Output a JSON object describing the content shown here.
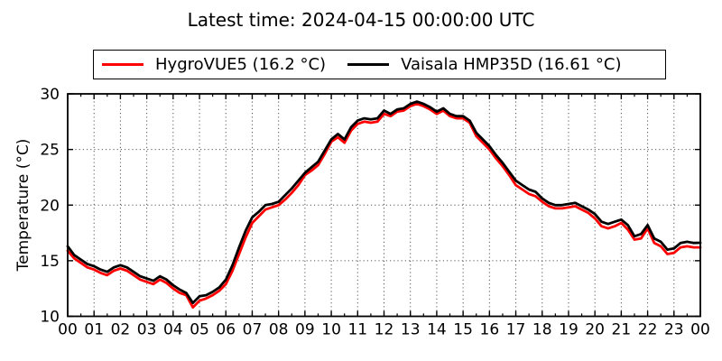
{
  "title": "Latest time: 2024-04-15 00:00:00 UTC",
  "legend": {
    "entries": [
      {
        "label": "HygroVUE5 (16.2 °C)",
        "color": "#ff0000"
      },
      {
        "label": "Vaisala HMP35D (16.61 °C)",
        "color": "#000000"
      }
    ]
  },
  "chart_data": {
    "type": "line",
    "title": "Latest time: 2024-04-15 00:00:00 UTC",
    "xlabel": "",
    "ylabel": "Temperature (°C)",
    "xlim_hours": [
      0,
      24
    ],
    "ylim": [
      10,
      30
    ],
    "y_ticks": [
      10,
      15,
      20,
      25,
      30
    ],
    "x_tick_labels": [
      "00",
      "01",
      "02",
      "03",
      "04",
      "05",
      "06",
      "07",
      "08",
      "09",
      "10",
      "11",
      "12",
      "13",
      "14",
      "15",
      "16",
      "17",
      "18",
      "19",
      "20",
      "21",
      "22",
      "23",
      "00"
    ],
    "x_minor_tick_interval_hours": 0.5,
    "grid": "dotted",
    "grid_color": "#555555",
    "legend_position": "top-center-above-axes",
    "x_start_hour": 0,
    "x_step_hours": 0.25,
    "series": [
      {
        "name": "HygroVUE5 (16.2 °C)",
        "sensor": "HygroVUE5",
        "latest_c": 16.2,
        "color": "#ff0000",
        "values": [
          15.9,
          15.2,
          14.8,
          14.4,
          14.2,
          13.9,
          13.7,
          14.1,
          14.3,
          14.1,
          13.7,
          13.3,
          13.1,
          12.9,
          13.3,
          13.0,
          12.5,
          12.1,
          11.9,
          10.8,
          11.4,
          11.6,
          11.9,
          12.3,
          12.9,
          14.1,
          15.6,
          17.1,
          18.4,
          19.0,
          19.6,
          19.8,
          20.0,
          20.5,
          21.1,
          21.8,
          22.7,
          23.1,
          23.6,
          24.6,
          25.7,
          26.1,
          25.6,
          26.7,
          27.3,
          27.5,
          27.4,
          27.5,
          28.2,
          28.0,
          28.4,
          28.5,
          28.9,
          29.1,
          28.9,
          28.6,
          28.2,
          28.5,
          28.0,
          27.8,
          27.8,
          27.4,
          26.2,
          25.6,
          25.0,
          24.2,
          23.5,
          22.7,
          21.8,
          21.4,
          21.0,
          20.8,
          20.3,
          19.9,
          19.7,
          19.7,
          19.8,
          19.9,
          19.6,
          19.3,
          18.8,
          18.1,
          17.9,
          18.1,
          18.4,
          17.8,
          16.9,
          17.0,
          17.9,
          16.6,
          16.3,
          15.6,
          15.7,
          16.2,
          16.3,
          16.2,
          16.2
        ]
      },
      {
        "name": "Vaisala HMP35D (16.61 °C)",
        "sensor": "Vaisala HMP35D",
        "latest_c": 16.61,
        "color": "#000000",
        "values": [
          16.3,
          15.5,
          15.1,
          14.7,
          14.5,
          14.2,
          14.0,
          14.4,
          14.6,
          14.4,
          14.0,
          13.6,
          13.4,
          13.2,
          13.6,
          13.3,
          12.8,
          12.4,
          12.1,
          11.2,
          11.8,
          11.9,
          12.2,
          12.6,
          13.3,
          14.6,
          16.2,
          17.7,
          18.9,
          19.4,
          20.0,
          20.1,
          20.3,
          20.9,
          21.5,
          22.2,
          22.9,
          23.4,
          23.9,
          24.9,
          25.9,
          26.4,
          25.9,
          27.0,
          27.6,
          27.8,
          27.7,
          27.8,
          28.5,
          28.2,
          28.6,
          28.7,
          29.1,
          29.3,
          29.1,
          28.8,
          28.4,
          28.7,
          28.2,
          28.0,
          28.0,
          27.6,
          26.5,
          25.9,
          25.3,
          24.5,
          23.8,
          23.0,
          22.2,
          21.8,
          21.4,
          21.2,
          20.6,
          20.2,
          20.0,
          20.0,
          20.1,
          20.2,
          19.9,
          19.6,
          19.2,
          18.5,
          18.3,
          18.5,
          18.7,
          18.2,
          17.2,
          17.4,
          18.2,
          17.0,
          16.7,
          16.0,
          16.1,
          16.6,
          16.7,
          16.6,
          16.61
        ]
      }
    ]
  }
}
